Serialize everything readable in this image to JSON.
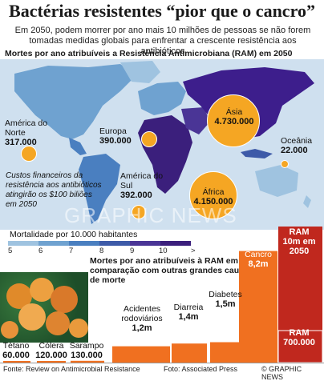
{
  "title": "Bactérias resistentes “pior que o cancro”",
  "subtitle": "Em 2050, podem morrer por ano mais 10 milhões de pessoas se não forem tomadas medidas globais para enfrentar a crescente resistência aos antibióticos",
  "map_heading": "Mortes por ano atribuíveis a Resistência Antimicrobiana (RAM) em 2050",
  "map_regions": [
    {
      "name": "América do Norte",
      "value": "317.000"
    },
    {
      "name": "Europa",
      "value": "390.000"
    },
    {
      "name": "Ásia",
      "value": "4.730.000"
    },
    {
      "name": "Oceânia",
      "value": "22.000"
    },
    {
      "name": "América do Sul",
      "value": "392.000"
    },
    {
      "name": "África",
      "value": "4.150.000"
    }
  ],
  "note": "Custos financeiros da resistência aos antibióticos atingirão os $100 biliões em 2050",
  "watermark": "GRAPHIC NEWS",
  "legend": {
    "title": "Mortalidade por 10.000 habitantes",
    "ticks": [
      "5",
      "6",
      "7",
      "8",
      "9",
      "10",
      ">"
    ],
    "colors": [
      "#9fc3e0",
      "#6fa2d0",
      "#4a7fc0",
      "#3d5aa8",
      "#4a3596",
      "#3b1f7c"
    ]
  },
  "bar_heading": "Mortes por ano atribuíveis à RAM em comparação com outras grandes causas de morte",
  "chart_data": {
    "type": "bar",
    "title": "Mortes por ano atribuíveis à RAM em comparação com outras grandes causas de morte",
    "unit": "milhões",
    "categories": [
      "Tétano",
      "Cólera",
      "Sarampo",
      "Acidentes rodoviários",
      "Diarreia",
      "Diabetes",
      "Cancro",
      "RAM"
    ],
    "values": [
      0.06,
      0.12,
      0.13,
      1.2,
      1.4,
      1.5,
      8.2,
      10
    ],
    "labels": [
      "60.000",
      "120.000",
      "130.000",
      "1,2m",
      "1,4m",
      "1,5m",
      "8,2m",
      "10m em 2050"
    ],
    "ram_today": {
      "label": "RAM",
      "value": "700.000",
      "numeric": 0.7
    },
    "colors": {
      "bar": "#f07020",
      "ram": "#c0281e",
      "ram_today": "#e0651e"
    }
  },
  "footer": {
    "source": "Fonte: Review on Antimicrobial Resistance",
    "photo": "Foto: Associated Press",
    "copyright": "© GRAPHIC NEWS"
  }
}
